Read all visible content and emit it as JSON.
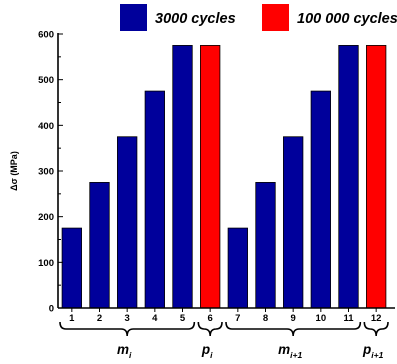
{
  "chart_data": {
    "type": "bar",
    "categories": [
      "1",
      "2",
      "3",
      "4",
      "5",
      "6",
      "7",
      "8",
      "9",
      "10",
      "11",
      "12"
    ],
    "values": [
      175,
      275,
      375,
      475,
      575,
      575,
      175,
      275,
      375,
      475,
      575,
      575
    ],
    "bar_series": [
      "3000 cycles",
      "3000 cycles",
      "3000 cycles",
      "3000 cycles",
      "3000 cycles",
      "100 000 cycles",
      "3000 cycles",
      "3000 cycles",
      "3000 cycles",
      "3000 cycles",
      "3000 cycles",
      "100 000 cycles"
    ],
    "series": [
      {
        "name": "3000 cycles",
        "color": "#00009b"
      },
      {
        "name": "100 000 cycles",
        "color": "#ff0000"
      }
    ],
    "ylabel": "Δσ (MPa)",
    "ylim": [
      0,
      600
    ],
    "yticks": [
      0,
      100,
      200,
      300,
      400,
      500,
      600
    ],
    "legend_position": "top",
    "grid": false,
    "groups": [
      {
        "name": "m",
        "sub": "i",
        "from": 1,
        "to": 5
      },
      {
        "name": "p",
        "sub": "i",
        "from": 6,
        "to": 6
      },
      {
        "name": "m",
        "sub": "i+1",
        "from": 7,
        "to": 11
      },
      {
        "name": "p",
        "sub": "i+1",
        "from": 12,
        "to": 12
      }
    ]
  }
}
